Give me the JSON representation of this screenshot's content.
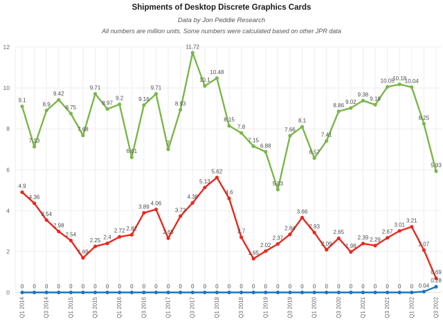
{
  "title": "Shipments of Desktop Discrete Graphics Cards",
  "subtitle": "Data by Jon Peddie Research",
  "note": "All numbers are million units. Some numbers were calculated based on other JPR data",
  "style": {
    "grid_color": "#ededed",
    "axis_line_color": "#e2e2e2",
    "axis_text_color": "#666666",
    "data_label_color": "#4d4d4d",
    "background": "#ffffff"
  },
  "chart_data": {
    "type": "line",
    "title": "Shipments of Desktop Discrete Graphics Cards",
    "subtitle": "Data by Jon Peddie Research",
    "note": "All numbers are million units. Some numbers were calculated based on other JPR data",
    "xlabel": "",
    "ylabel": "",
    "ylim": [
      0,
      12
    ],
    "y_ticks": [
      0,
      2,
      4,
      6,
      8,
      10,
      12
    ],
    "grid": true,
    "legend": "none",
    "n_points": 35,
    "tick_every": 2,
    "x_tick_labels": [
      "Q1 2014",
      "Q3 2014",
      "Q1 2015",
      "Q3 2015",
      "Q1 2016",
      "Q3 2016",
      "Q1 2017",
      "Q3 2017",
      "Q1 2018",
      "Q3 2018",
      "Q1 2019",
      "Q3 2019",
      "Q1 2020",
      "Q3 2020",
      "Q1 2021",
      "Q3 2021",
      "Q1 2022",
      "Q3 2022"
    ],
    "series": [
      {
        "name": "green-series",
        "color": "#7ab648",
        "values": [
          9.1,
          7.13,
          8.9,
          9.42,
          8.75,
          7.68,
          9.71,
          8.97,
          9.2,
          6.61,
          9.16,
          9.71,
          7,
          8.93,
          11.72,
          10.1,
          10.48,
          8.15,
          7.8,
          7.15,
          6.88,
          5.03,
          7.66,
          8.1,
          6.57,
          7.41,
          8.86,
          9.02,
          9.38,
          9.18,
          10.05,
          10.18,
          10.04,
          8.25,
          5.93
        ]
      },
      {
        "name": "red-series",
        "color": "#e8281e",
        "values": [
          4.9,
          4.36,
          3.54,
          2.98,
          2.54,
          1.69,
          2.25,
          2.4,
          2.72,
          2.82,
          3.89,
          4.06,
          2.65,
          3.73,
          4.38,
          5.13,
          5.62,
          4.6,
          2.7,
          1.65,
          2.02,
          2.37,
          2.84,
          3.66,
          2.93,
          2.09,
          2.65,
          1.98,
          2.39,
          2.29,
          2.67,
          3.01,
          3.21,
          2.07,
          0.69
        ]
      },
      {
        "name": "blue-series",
        "color": "#1c75bc",
        "values": [
          0,
          0,
          0,
          0,
          0,
          0,
          0,
          0,
          0,
          0,
          0,
          0,
          0,
          0,
          0,
          0,
          0,
          0,
          0,
          0,
          0,
          0,
          0,
          0,
          0,
          0,
          0,
          0,
          0,
          0,
          0,
          0,
          0,
          0.04,
          0.28
        ]
      }
    ]
  }
}
